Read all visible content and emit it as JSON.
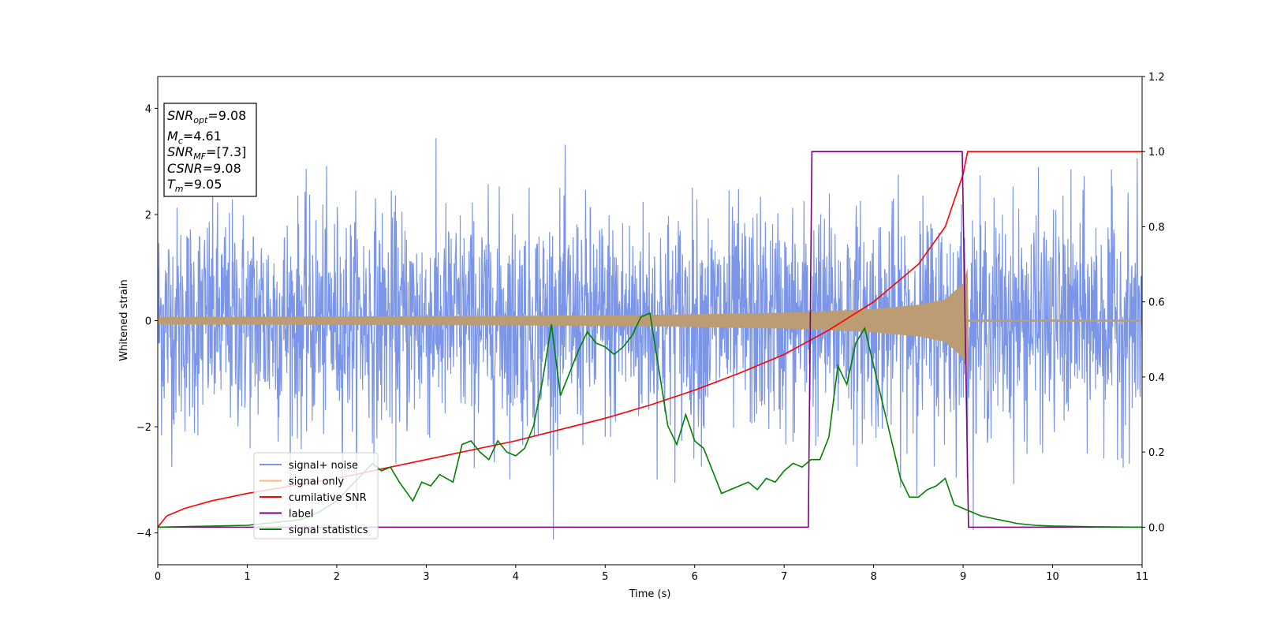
{
  "chart_data": {
    "type": "line",
    "xlabel": "Time (s)",
    "ylabel": "Whitened strain",
    "xlim": [
      0,
      11
    ],
    "ylim_left": [
      -4.6,
      4.6
    ],
    "ylim_right": [
      -0.1,
      1.2
    ],
    "x_ticks": [
      "0",
      "1",
      "2",
      "3",
      "4",
      "5",
      "6",
      "7",
      "8",
      "9",
      "10",
      "11"
    ],
    "y_ticks_left": [
      "4",
      "2",
      "0",
      "−2",
      "−4"
    ],
    "y_ticks_right": [
      "1.2",
      "1.0",
      "0.8",
      "0.6",
      "0.4",
      "0.2",
      "0.0"
    ],
    "grid": false,
    "legend_position": "lower-left",
    "annotation": {
      "snr_opt": "9.08",
      "mc": "4.61",
      "snr_mf": "[7.3]",
      "csnr": "9.08",
      "tm": "9.05"
    },
    "series": [
      {
        "name": "signal+ noise",
        "axis": "left",
        "color": "#7b96e8",
        "style": "dense noise band, approx. range",
        "typical_range": [
          -2.4,
          2.4
        ],
        "peak_max": 4.18,
        "peak_min": -4.12
      },
      {
        "name": "signal only",
        "axis": "left",
        "color": "#f5b97a",
        "style": "chirp envelope (± amplitude)",
        "x": [
          0,
          2,
          4,
          5,
          6,
          7,
          7.5,
          8,
          8.5,
          8.8,
          9.0,
          9.05,
          9.06,
          11
        ],
        "envelope": [
          0.07,
          0.08,
          0.09,
          0.1,
          0.12,
          0.15,
          0.18,
          0.22,
          0.3,
          0.4,
          0.7,
          1.0,
          0.02,
          0.02
        ]
      },
      {
        "name": "cumilative SNR",
        "axis": "right",
        "color": "#ff0000",
        "x": [
          0,
          0.1,
          0.3,
          0.6,
          1,
          1.5,
          2,
          2.5,
          3,
          3.5,
          4,
          4.5,
          5,
          5.5,
          6,
          6.5,
          7,
          7.5,
          8,
          8.5,
          8.8,
          9.0,
          9.05,
          11
        ],
        "values": [
          0.0,
          0.03,
          0.05,
          0.07,
          0.09,
          0.11,
          0.13,
          0.155,
          0.18,
          0.205,
          0.23,
          0.26,
          0.29,
          0.325,
          0.365,
          0.41,
          0.46,
          0.525,
          0.6,
          0.7,
          0.8,
          0.94,
          1.0,
          1.0
        ]
      },
      {
        "name": "label",
        "axis": "right",
        "color": "#800080",
        "x": [
          0,
          7.27,
          7.31,
          8.99,
          9.06,
          11
        ],
        "values": [
          0,
          0,
          1,
          1,
          0,
          0
        ]
      },
      {
        "name": "signal statistics",
        "axis": "right",
        "color": "#008000",
        "x": [
          0,
          1,
          1.6,
          1.8,
          2.0,
          2.2,
          2.4,
          2.5,
          2.6,
          2.7,
          2.85,
          2.95,
          3.05,
          3.15,
          3.3,
          3.4,
          3.5,
          3.6,
          3.7,
          3.8,
          3.9,
          4.0,
          4.1,
          4.2,
          4.3,
          4.4,
          4.5,
          4.6,
          4.7,
          4.8,
          4.9,
          5.0,
          5.1,
          5.2,
          5.3,
          5.4,
          5.5,
          5.6,
          5.7,
          5.8,
          5.9,
          6.0,
          6.1,
          6.2,
          6.3,
          6.4,
          6.5,
          6.6,
          6.7,
          6.8,
          6.9,
          7.0,
          7.1,
          7.2,
          7.3,
          7.4,
          7.5,
          7.6,
          7.7,
          7.8,
          7.9,
          8.0,
          8.1,
          8.2,
          8.3,
          8.4,
          8.5,
          8.6,
          8.7,
          8.8,
          8.9,
          9.0,
          9.2,
          9.4,
          9.6,
          9.8,
          10,
          10.5,
          11
        ],
        "values": [
          0.0,
          0.005,
          0.02,
          0.04,
          0.07,
          0.12,
          0.17,
          0.15,
          0.16,
          0.12,
          0.07,
          0.12,
          0.11,
          0.14,
          0.12,
          0.22,
          0.23,
          0.2,
          0.18,
          0.23,
          0.2,
          0.19,
          0.21,
          0.27,
          0.39,
          0.54,
          0.35,
          0.41,
          0.47,
          0.52,
          0.49,
          0.48,
          0.46,
          0.48,
          0.51,
          0.56,
          0.57,
          0.42,
          0.27,
          0.22,
          0.3,
          0.23,
          0.21,
          0.15,
          0.09,
          0.1,
          0.11,
          0.12,
          0.1,
          0.13,
          0.12,
          0.15,
          0.17,
          0.16,
          0.18,
          0.18,
          0.24,
          0.43,
          0.38,
          0.49,
          0.53,
          0.43,
          0.33,
          0.23,
          0.13,
          0.08,
          0.08,
          0.1,
          0.11,
          0.13,
          0.06,
          0.05,
          0.03,
          0.02,
          0.01,
          0.005,
          0.003,
          0.001,
          0.0
        ]
      }
    ]
  }
}
